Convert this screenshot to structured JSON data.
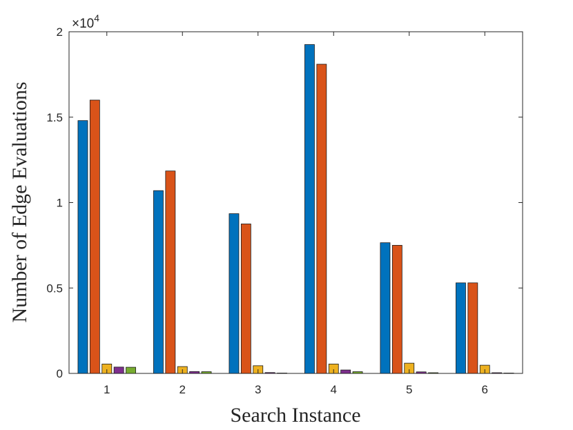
{
  "chart_data": {
    "type": "bar",
    "xlabel": "Search Instance",
    "ylabel": "Number of Edge Evaluations",
    "categories": [
      "1",
      "2",
      "3",
      "4",
      "5",
      "6"
    ],
    "ylim": [
      0,
      20000
    ],
    "yticks": [
      0,
      5000,
      10000,
      15000,
      20000
    ],
    "ytick_labels": [
      "0",
      "0.5",
      "1",
      "1.5",
      "2"
    ],
    "exponent_base": "×10",
    "exponent_power": "4",
    "grid": false,
    "series": [
      {
        "color": "#0072BD",
        "values": [
          14800,
          10700,
          9350,
          19250,
          7650,
          5300
        ]
      },
      {
        "color": "#D95319",
        "values": [
          16000,
          11850,
          8750,
          18100,
          7500,
          5300
        ]
      },
      {
        "color": "#EDB120",
        "values": [
          550,
          400,
          450,
          550,
          600,
          480
        ]
      },
      {
        "color": "#7E2F8E",
        "values": [
          370,
          110,
          50,
          200,
          90,
          40
        ]
      },
      {
        "color": "#77AC30",
        "values": [
          360,
          100,
          20,
          100,
          40,
          20
        ]
      }
    ]
  }
}
